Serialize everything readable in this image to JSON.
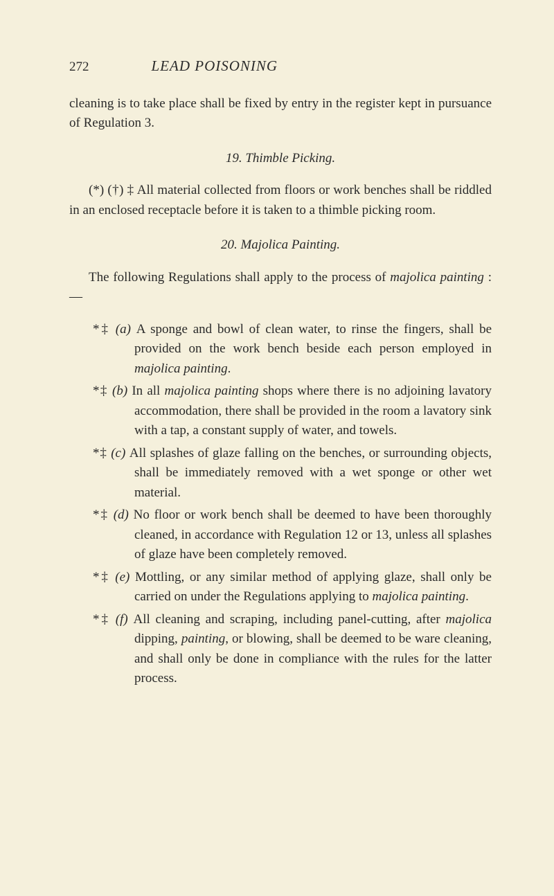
{
  "pageNumber": "272",
  "runningTitle": "LEAD POISONING",
  "para1": "cleaning is to take place shall be fixed by entry in the register kept in pursuance of Regulation 3.",
  "section19": {
    "heading": "19.  Thimble Picking.",
    "body": "(*) (†) ‡ All material collected from floors or work benches shall be riddled in an enclosed receptacle before it is taken to a thimble picking room."
  },
  "section20": {
    "heading": "20.  Majolica Painting.",
    "intro_pre": "The following Regulations shall apply to the process of ",
    "intro_ital": "majolica painting",
    "intro_post": " :—",
    "items": [
      {
        "marker": "*‡ ",
        "label": "(a) ",
        "txt_pre": "A sponge and bowl of clean water, to rinse the fingers, shall be provided on the work bench beside each person employed in ",
        "txt_ital": "majolica painting",
        "txt_post": "."
      },
      {
        "marker": "*‡ ",
        "label": "(b) ",
        "txt_pre": "In all ",
        "txt_ital": "majolica painting",
        "txt_post": " shops where there is no adjoining lavatory accommodation, there shall be provided in the room a lavatory sink with a tap, a constant supply of water, and towels."
      },
      {
        "marker": "*‡ ",
        "label": "(c) ",
        "txt_pre": "All splashes of glaze falling on the benches, or surrounding objects, shall be immediately removed with a wet sponge or other wet material.",
        "txt_ital": "",
        "txt_post": ""
      },
      {
        "marker": "*‡ ",
        "label": "(d) ",
        "txt_pre": "No floor or work bench shall be deemed to have been thoroughly cleaned, in accordance with Regulation 12 or 13, unless all splashes of glaze have been completely removed.",
        "txt_ital": "",
        "txt_post": ""
      },
      {
        "marker": "*‡ ",
        "label": "(e) ",
        "txt_pre": "Mottling, or any similar method of applying glaze, shall only be carried on under the Regulations applying to ",
        "txt_ital": "majolica painting",
        "txt_post": "."
      },
      {
        "marker": "*‡ ",
        "label": "(f) ",
        "txt_pre": "All cleaning and scraping, including panel-cutting, after ",
        "txt_ital": "majolica",
        "txt_post_pre": " dipping, ",
        "txt_ital2": "painting",
        "txt_post": ", or blowing, shall be deemed to be ware cleaning, and shall only be done in compliance with the rules for the latter process."
      }
    ]
  }
}
